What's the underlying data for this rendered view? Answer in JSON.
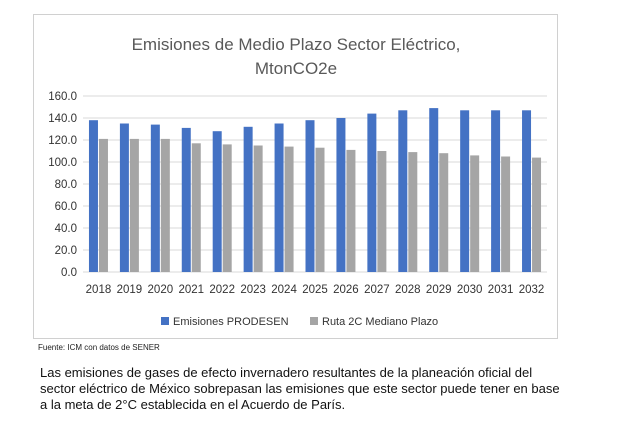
{
  "chart_data": {
    "type": "bar",
    "title_lines": [
      "Emisiones de Medio Plazo Sector Eléctrico,",
      "MtonCO2e"
    ],
    "categories": [
      "2018",
      "2019",
      "2020",
      "2021",
      "2022",
      "2023",
      "2024",
      "2025",
      "2026",
      "2027",
      "2028",
      "2029",
      "2030",
      "2031",
      "2032"
    ],
    "series": [
      {
        "name": "Emisiones PRODESEN",
        "color": "#4472c4",
        "values": [
          138,
          135,
          134,
          131,
          128,
          132,
          135,
          138,
          140,
          144,
          147,
          149,
          147,
          147,
          147
        ]
      },
      {
        "name": "Ruta 2C Mediano Plazo",
        "color": "#a5a5a5",
        "values": [
          121,
          121,
          121,
          117,
          116,
          115,
          114,
          113,
          111,
          110,
          109,
          108,
          106,
          105,
          104
        ]
      }
    ],
    "ylim": [
      0,
      160
    ],
    "yticks": [
      "0.0",
      "20.0",
      "40.0",
      "60.0",
      "80.0",
      "100.0",
      "120.0",
      "140.0",
      "160.0"
    ],
    "grid": true,
    "legend_position": "bottom"
  },
  "source": "Fuente: ICM con datos de SENER",
  "caption": "Las emisiones de gases de efecto invernadero resultantes de la planeación oficial del sector eléctrico de México sobrepasan las emisiones que este sector puede tener en base a la meta de 2°C establecida en el Acuerdo de París."
}
